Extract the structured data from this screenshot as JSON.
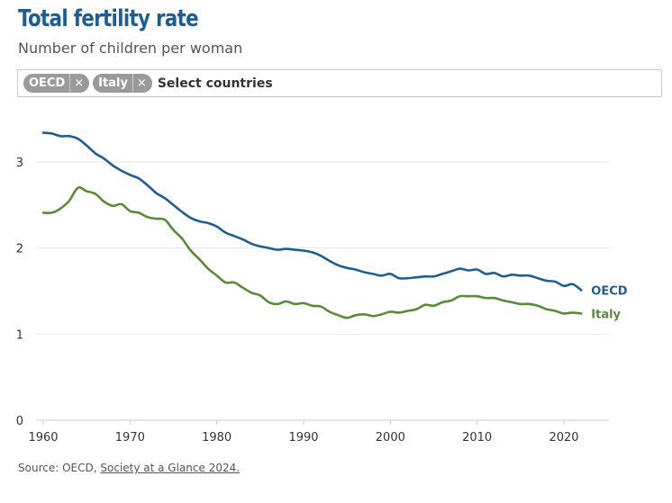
{
  "header": {
    "title": "Total fertility rate",
    "subtitle": "Number of children per woman"
  },
  "selector": {
    "chips": [
      {
        "label": "OECD",
        "remove": "×"
      },
      {
        "label": "Italy",
        "remove": "×"
      }
    ],
    "placeholder": "Select countries"
  },
  "footer": {
    "prefix": "Source: OECD, ",
    "link_text": "Society at a Glance 2024."
  },
  "chart_data": {
    "type": "line",
    "title": "Total fertility rate",
    "subtitle": "Number of children per woman",
    "xlim": [
      1960,
      2022
    ],
    "ylim": [
      0,
      3.5
    ],
    "x_ticks": [
      1960,
      1970,
      1980,
      1990,
      2000,
      2010,
      2020
    ],
    "y_ticks": [
      0,
      1,
      2,
      3
    ],
    "grid": true,
    "legend": "end-of-line labels",
    "x": [
      1960,
      1961,
      1962,
      1963,
      1964,
      1965,
      1966,
      1967,
      1968,
      1969,
      1970,
      1971,
      1972,
      1973,
      1974,
      1975,
      1976,
      1977,
      1978,
      1979,
      1980,
      1981,
      1982,
      1983,
      1984,
      1985,
      1986,
      1987,
      1988,
      1989,
      1990,
      1991,
      1992,
      1993,
      1994,
      1995,
      1996,
      1997,
      1998,
      1999,
      2000,
      2001,
      2002,
      2003,
      2004,
      2005,
      2006,
      2007,
      2008,
      2009,
      2010,
      2011,
      2012,
      2013,
      2014,
      2015,
      2016,
      2017,
      2018,
      2019,
      2020,
      2021,
      2022
    ],
    "series": [
      {
        "name": "OECD",
        "color": "#1f5e93",
        "values": [
          3.34,
          3.33,
          3.3,
          3.3,
          3.27,
          3.19,
          3.1,
          3.04,
          2.96,
          2.9,
          2.85,
          2.81,
          2.73,
          2.64,
          2.58,
          2.5,
          2.42,
          2.35,
          2.31,
          2.29,
          2.25,
          2.18,
          2.14,
          2.1,
          2.05,
          2.02,
          2.0,
          1.98,
          1.99,
          1.98,
          1.97,
          1.95,
          1.91,
          1.85,
          1.8,
          1.77,
          1.75,
          1.72,
          1.7,
          1.68,
          1.7,
          1.65,
          1.65,
          1.66,
          1.67,
          1.67,
          1.7,
          1.73,
          1.76,
          1.74,
          1.75,
          1.7,
          1.71,
          1.67,
          1.69,
          1.68,
          1.68,
          1.65,
          1.62,
          1.61,
          1.56,
          1.58,
          1.51
        ]
      },
      {
        "name": "Italy",
        "color": "#5a8a3a",
        "values": [
          2.41,
          2.41,
          2.46,
          2.55,
          2.7,
          2.66,
          2.63,
          2.54,
          2.49,
          2.51,
          2.43,
          2.41,
          2.36,
          2.34,
          2.33,
          2.21,
          2.11,
          1.97,
          1.87,
          1.76,
          1.68,
          1.6,
          1.6,
          1.54,
          1.48,
          1.45,
          1.37,
          1.35,
          1.38,
          1.35,
          1.36,
          1.33,
          1.32,
          1.26,
          1.22,
          1.19,
          1.22,
          1.23,
          1.21,
          1.23,
          1.26,
          1.25,
          1.27,
          1.29,
          1.34,
          1.33,
          1.37,
          1.39,
          1.44,
          1.44,
          1.44,
          1.42,
          1.42,
          1.39,
          1.37,
          1.35,
          1.35,
          1.33,
          1.29,
          1.27,
          1.24,
          1.25,
          1.24
        ]
      }
    ]
  },
  "footer_link": "Society at a Glance 2024."
}
